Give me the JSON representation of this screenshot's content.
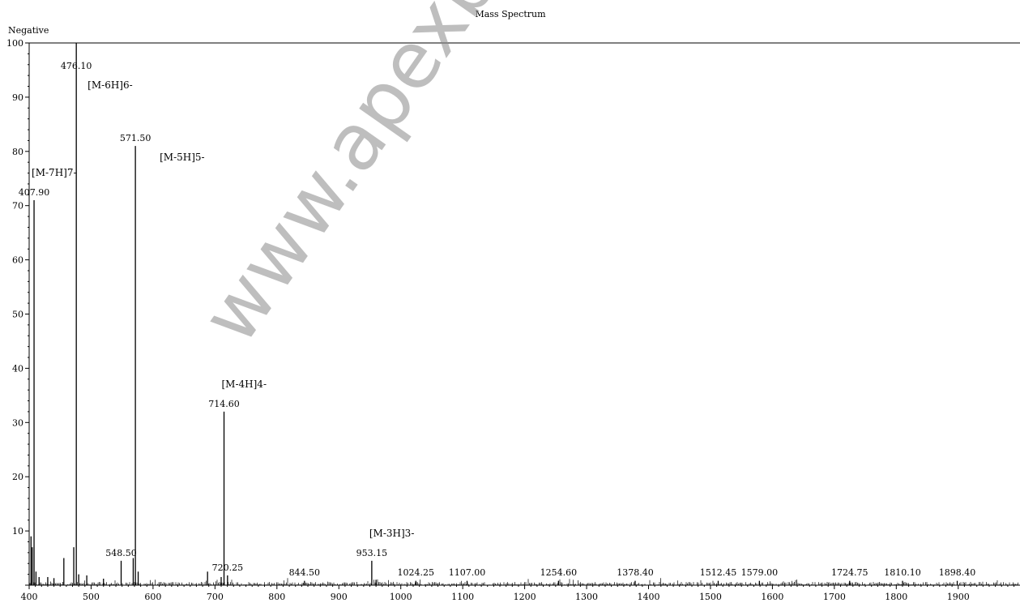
{
  "chart_data": {
    "type": "line",
    "title": "Mass Spectrum",
    "mode": "Negative",
    "xlim": [
      400,
      1990
    ],
    "ylim": [
      0,
      100
    ],
    "xticks": [
      400,
      500,
      600,
      700,
      800,
      900,
      1000,
      1100,
      1200,
      1300,
      1400,
      1500,
      1600,
      1700,
      1800,
      1900
    ],
    "yticks": [
      10,
      20,
      30,
      40,
      50,
      60,
      70,
      80,
      90,
      100
    ],
    "major_peaks": [
      {
        "mz": 407.9,
        "label": "407.90",
        "intensity": 71,
        "annotation": "[M-7H]7-"
      },
      {
        "mz": 476.1,
        "label": "476.10",
        "intensity": 100,
        "annotation": "[M-6H]6-"
      },
      {
        "mz": 571.5,
        "label": "571.50",
        "intensity": 81,
        "annotation": "[M-5H]5-"
      },
      {
        "mz": 714.6,
        "label": "714.60",
        "intensity": 32,
        "annotation": "[M-4H]4-"
      },
      {
        "mz": 953.15,
        "label": "953.15",
        "intensity": 4.5,
        "annotation": "[M-3H]3-"
      }
    ],
    "minor_peaks": [
      {
        "mz": 548.5,
        "label": "548.50",
        "intensity": 4.5
      },
      {
        "mz": 720.25,
        "label": "720.25",
        "intensity": 1.8
      },
      {
        "mz": 844.5,
        "label": "844.50",
        "intensity": 0.8
      },
      {
        "mz": 1024.25,
        "label": "1024.25",
        "intensity": 0.8
      },
      {
        "mz": 1107.0,
        "label": "1107.00",
        "intensity": 0.8
      },
      {
        "mz": 1254.6,
        "label": "1254.60",
        "intensity": 0.8
      },
      {
        "mz": 1378.4,
        "label": "1378.40",
        "intensity": 0.8
      },
      {
        "mz": 1512.45,
        "label": "1512.45",
        "intensity": 0.8
      },
      {
        "mz": 1579.0,
        "label": "1579.00",
        "intensity": 0.8
      },
      {
        "mz": 1724.75,
        "label": "1724.75",
        "intensity": 0.8
      },
      {
        "mz": 1810.1,
        "label": "1810.10",
        "intensity": 0.8
      },
      {
        "mz": 1898.4,
        "label": "1898.40",
        "intensity": 0.8
      }
    ],
    "unlabeled_peaks": [
      {
        "mz": 403,
        "intensity": 9
      },
      {
        "mz": 405,
        "intensity": 7
      },
      {
        "mz": 411,
        "intensity": 2.5
      },
      {
        "mz": 416,
        "intensity": 1.5
      },
      {
        "mz": 430,
        "intensity": 1.5
      },
      {
        "mz": 440,
        "intensity": 1.3
      },
      {
        "mz": 456,
        "intensity": 5
      },
      {
        "mz": 472,
        "intensity": 7
      },
      {
        "mz": 480,
        "intensity": 2
      },
      {
        "mz": 493,
        "intensity": 1.8
      },
      {
        "mz": 520,
        "intensity": 1.2
      },
      {
        "mz": 568,
        "intensity": 5
      },
      {
        "mz": 576,
        "intensity": 2.5
      },
      {
        "mz": 688,
        "intensity": 2.5
      },
      {
        "mz": 710,
        "intensity": 1.5
      },
      {
        "mz": 960,
        "intensity": 1
      }
    ],
    "grid": false,
    "legend": "none"
  },
  "watermark": "www.apexbt"
}
